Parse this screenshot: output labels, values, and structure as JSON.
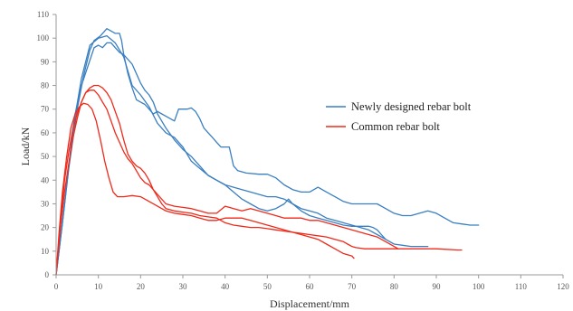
{
  "chart_data": {
    "type": "line",
    "xlabel": "Displacement/mm",
    "ylabel": "Load/kN",
    "xlim": [
      0,
      120
    ],
    "ylim": [
      0,
      110
    ],
    "x_ticks": [
      0,
      10,
      20,
      30,
      40,
      50,
      60,
      70,
      80,
      90,
      100,
      110,
      120
    ],
    "y_ticks": [
      0,
      10,
      20,
      30,
      40,
      50,
      60,
      70,
      80,
      90,
      100,
      110
    ],
    "grid": false,
    "legend_position": "right",
    "legend": [
      {
        "name": "Newly designed rebar bolt",
        "color": "#3a7fc1"
      },
      {
        "name": "Common rebar bolt",
        "color": "#ee2a1b"
      }
    ],
    "series": [
      {
        "group": "Newly designed rebar bolt",
        "color": "#3a7fc1",
        "points": [
          [
            0,
            0
          ],
          [
            1.5,
            22
          ],
          [
            3,
            45
          ],
          [
            5,
            70
          ],
          [
            6.5,
            84
          ],
          [
            8,
            95
          ],
          [
            9,
            99
          ],
          [
            10.5,
            101
          ],
          [
            11.5,
            103
          ],
          [
            12,
            104
          ],
          [
            13,
            103
          ],
          [
            14,
            102
          ],
          [
            15,
            102
          ],
          [
            15.5,
            99
          ],
          [
            16,
            93
          ],
          [
            17,
            85
          ],
          [
            18,
            79
          ],
          [
            19,
            74
          ],
          [
            20,
            73
          ],
          [
            21,
            72
          ],
          [
            22,
            70
          ],
          [
            23,
            68
          ],
          [
            24,
            69
          ],
          [
            25,
            68
          ],
          [
            26,
            67
          ],
          [
            27,
            66
          ],
          [
            28,
            65
          ],
          [
            29,
            70
          ],
          [
            30,
            70
          ],
          [
            31,
            70
          ],
          [
            32,
            70.5
          ],
          [
            33,
            69
          ],
          [
            34,
            66
          ],
          [
            35,
            62
          ],
          [
            36,
            60
          ],
          [
            37,
            58
          ],
          [
            38,
            56
          ],
          [
            39,
            54
          ],
          [
            40,
            54
          ],
          [
            41,
            54
          ],
          [
            42,
            46
          ],
          [
            43,
            44
          ],
          [
            45,
            43
          ],
          [
            48,
            42.5
          ],
          [
            50,
            42.5
          ],
          [
            52,
            41
          ],
          [
            54,
            38
          ],
          [
            56,
            36
          ],
          [
            58,
            35
          ],
          [
            60,
            35
          ],
          [
            62,
            37
          ],
          [
            64,
            35
          ],
          [
            66,
            33
          ],
          [
            68,
            31
          ],
          [
            70,
            30
          ],
          [
            72,
            30
          ],
          [
            74,
            30
          ],
          [
            76,
            30
          ],
          [
            78,
            28
          ],
          [
            80,
            26
          ],
          [
            82,
            25
          ],
          [
            84,
            25
          ],
          [
            86,
            26
          ],
          [
            88,
            27
          ],
          [
            90,
            26
          ],
          [
            92,
            24
          ],
          [
            94,
            22
          ],
          [
            96,
            21.5
          ],
          [
            98,
            21
          ],
          [
            100,
            21
          ]
        ]
      },
      {
        "group": "Newly designed rebar bolt",
        "color": "#3a7fc1",
        "points": [
          [
            0,
            0
          ],
          [
            1.5,
            22
          ],
          [
            3,
            46
          ],
          [
            4.5,
            68
          ],
          [
            6,
            80
          ],
          [
            7.5,
            88
          ],
          [
            9,
            96
          ],
          [
            10,
            97
          ],
          [
            11,
            96
          ],
          [
            12,
            98
          ],
          [
            13,
            98
          ],
          [
            14,
            96
          ],
          [
            15,
            94
          ],
          [
            16,
            93
          ],
          [
            17,
            91
          ],
          [
            18,
            89
          ],
          [
            19,
            85
          ],
          [
            20,
            81
          ],
          [
            21,
            78
          ],
          [
            22,
            76
          ],
          [
            23,
            73
          ],
          [
            24,
            68
          ],
          [
            26,
            62
          ],
          [
            28,
            57
          ],
          [
            30,
            53
          ],
          [
            32,
            50
          ],
          [
            34,
            46
          ],
          [
            36,
            42
          ],
          [
            38,
            40
          ],
          [
            40,
            38
          ],
          [
            42,
            35
          ],
          [
            44,
            32
          ],
          [
            46,
            30
          ],
          [
            48,
            28
          ],
          [
            50,
            27
          ],
          [
            52,
            28
          ],
          [
            54,
            30
          ],
          [
            55,
            32
          ],
          [
            56,
            30
          ],
          [
            58,
            27
          ],
          [
            60,
            25
          ],
          [
            62,
            24
          ],
          [
            64,
            23
          ],
          [
            66,
            22
          ],
          [
            68,
            21
          ],
          [
            70,
            20.5
          ],
          [
            72,
            20.5
          ],
          [
            74,
            20.5
          ],
          [
            75,
            20
          ],
          [
            76,
            19
          ],
          [
            77,
            17
          ],
          [
            78,
            15
          ]
        ]
      },
      {
        "group": "Newly designed rebar bolt",
        "color": "#3a7fc1",
        "points": [
          [
            0,
            0
          ],
          [
            2,
            30
          ],
          [
            4,
            62
          ],
          [
            6,
            83
          ],
          [
            8,
            97
          ],
          [
            10,
            100
          ],
          [
            12,
            101
          ],
          [
            14,
            98
          ],
          [
            16,
            92
          ],
          [
            18,
            80
          ],
          [
            20,
            76
          ],
          [
            22,
            71
          ],
          [
            24,
            64
          ],
          [
            26,
            60
          ],
          [
            28,
            58
          ],
          [
            30,
            54
          ],
          [
            32,
            48
          ],
          [
            34,
            45
          ],
          [
            36,
            42
          ],
          [
            38,
            40
          ],
          [
            40,
            38
          ],
          [
            42,
            37
          ],
          [
            44,
            36
          ],
          [
            46,
            35
          ],
          [
            48,
            34
          ],
          [
            50,
            33
          ],
          [
            52,
            33
          ],
          [
            54,
            32
          ],
          [
            56,
            30
          ],
          [
            58,
            28
          ],
          [
            60,
            27
          ],
          [
            62,
            26
          ],
          [
            64,
            24
          ],
          [
            66,
            23
          ],
          [
            68,
            22
          ],
          [
            70,
            21
          ],
          [
            72,
            20
          ],
          [
            74,
            19
          ],
          [
            76,
            17
          ],
          [
            78,
            15
          ],
          [
            80,
            13
          ],
          [
            82,
            12.5
          ],
          [
            84,
            12
          ],
          [
            86,
            12
          ],
          [
            88,
            12
          ]
        ]
      },
      {
        "group": "Common rebar bolt",
        "color": "#ee2a1b",
        "points": [
          [
            0,
            0
          ],
          [
            0.7,
            18
          ],
          [
            1.5,
            35
          ],
          [
            2.5,
            50
          ],
          [
            3.5,
            62
          ],
          [
            4.5,
            68
          ],
          [
            5.5,
            71
          ],
          [
            6.5,
            72.5
          ],
          [
            7.5,
            72
          ],
          [
            8.5,
            70
          ],
          [
            9.5,
            65
          ],
          [
            10.5,
            57
          ],
          [
            11.5,
            48
          ],
          [
            12.5,
            41
          ],
          [
            13.5,
            35
          ],
          [
            14.5,
            33
          ],
          [
            16,
            33
          ],
          [
            18,
            33.5
          ],
          [
            20,
            33
          ],
          [
            22,
            31
          ],
          [
            24,
            29
          ],
          [
            26,
            27
          ],
          [
            28,
            26
          ],
          [
            30,
            25.5
          ],
          [
            32,
            25
          ],
          [
            34,
            24
          ],
          [
            36,
            23
          ],
          [
            38,
            23
          ],
          [
            40,
            24
          ],
          [
            42,
            24
          ],
          [
            44,
            24
          ],
          [
            46,
            23
          ],
          [
            48,
            22
          ],
          [
            50,
            21
          ],
          [
            52,
            20
          ],
          [
            54,
            19
          ],
          [
            56,
            18
          ],
          [
            58,
            17
          ],
          [
            60,
            16
          ],
          [
            62,
            15
          ],
          [
            64,
            13
          ],
          [
            66,
            11
          ],
          [
            68,
            9
          ],
          [
            70,
            8
          ],
          [
            70.5,
            7
          ]
        ]
      },
      {
        "group": "Common rebar bolt",
        "color": "#ee2a1b",
        "points": [
          [
            0,
            0
          ],
          [
            1,
            20
          ],
          [
            2,
            35
          ],
          [
            3,
            47
          ],
          [
            4,
            58
          ],
          [
            5,
            66
          ],
          [
            6,
            73
          ],
          [
            7,
            77
          ],
          [
            8,
            79
          ],
          [
            9,
            80
          ],
          [
            10,
            80
          ],
          [
            11,
            79
          ],
          [
            12,
            77
          ],
          [
            13,
            74
          ],
          [
            14,
            69
          ],
          [
            15,
            64
          ],
          [
            16,
            57
          ],
          [
            17,
            51
          ],
          [
            18,
            48
          ],
          [
            19,
            46
          ],
          [
            20,
            45
          ],
          [
            21,
            43
          ],
          [
            22,
            40
          ],
          [
            23,
            36
          ],
          [
            24,
            33
          ],
          [
            25,
            30
          ],
          [
            26,
            28
          ],
          [
            28,
            27
          ],
          [
            30,
            26.5
          ],
          [
            32,
            26
          ],
          [
            34,
            25
          ],
          [
            36,
            24.5
          ],
          [
            38,
            24
          ],
          [
            40,
            22
          ],
          [
            42,
            21
          ],
          [
            44,
            20.5
          ],
          [
            46,
            20
          ],
          [
            48,
            20
          ],
          [
            50,
            19.5
          ],
          [
            52,
            19
          ],
          [
            54,
            18.5
          ],
          [
            56,
            18
          ],
          [
            58,
            17.5
          ],
          [
            60,
            17
          ],
          [
            62,
            16.5
          ],
          [
            64,
            16
          ],
          [
            66,
            15
          ],
          [
            68,
            14
          ],
          [
            69,
            13
          ],
          [
            70,
            12
          ],
          [
            71,
            11.5
          ],
          [
            73,
            11
          ],
          [
            76,
            11
          ],
          [
            80,
            11
          ],
          [
            85,
            11
          ],
          [
            90,
            11
          ],
          [
            95,
            10.5
          ],
          [
            96,
            10.5
          ]
        ]
      },
      {
        "group": "Common rebar bolt",
        "color": "#ee2a1b",
        "points": [
          [
            0,
            0
          ],
          [
            1,
            22
          ],
          [
            2,
            40
          ],
          [
            3,
            52
          ],
          [
            4,
            62
          ],
          [
            5,
            68
          ],
          [
            6,
            73
          ],
          [
            7,
            77
          ],
          [
            8,
            78
          ],
          [
            9,
            78
          ],
          [
            10,
            76
          ],
          [
            11,
            73
          ],
          [
            12,
            70
          ],
          [
            13,
            65
          ],
          [
            14,
            60
          ],
          [
            15,
            56
          ],
          [
            16,
            52
          ],
          [
            17,
            49
          ],
          [
            18,
            47
          ],
          [
            19,
            44
          ],
          [
            20,
            41
          ],
          [
            21,
            39
          ],
          [
            22,
            38
          ],
          [
            23,
            36
          ],
          [
            24,
            34
          ],
          [
            26,
            30
          ],
          [
            28,
            29
          ],
          [
            30,
            28.5
          ],
          [
            32,
            28
          ],
          [
            34,
            27
          ],
          [
            36,
            26
          ],
          [
            38,
            26
          ],
          [
            40,
            29
          ],
          [
            42,
            28
          ],
          [
            44,
            27
          ],
          [
            46,
            28
          ],
          [
            48,
            27
          ],
          [
            50,
            26
          ],
          [
            52,
            25
          ],
          [
            54,
            24
          ],
          [
            56,
            24
          ],
          [
            58,
            24
          ],
          [
            60,
            23
          ],
          [
            62,
            23
          ],
          [
            64,
            22
          ],
          [
            66,
            21
          ],
          [
            68,
            20
          ],
          [
            70,
            19
          ],
          [
            72,
            18
          ],
          [
            74,
            17
          ],
          [
            76,
            16
          ],
          [
            78,
            14
          ],
          [
            80,
            12
          ],
          [
            81,
            11
          ]
        ]
      }
    ]
  }
}
